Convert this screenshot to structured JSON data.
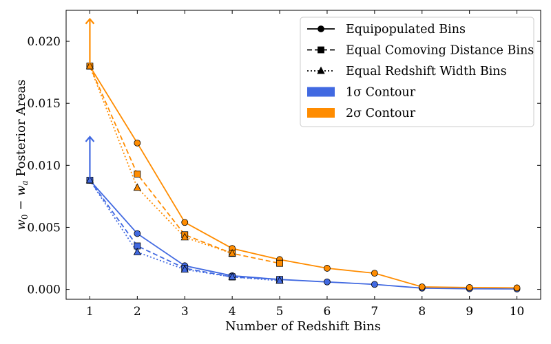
{
  "chart_data": {
    "type": "line",
    "title": "",
    "xlabel": "Number of Redshift Bins",
    "ylabel_prefix": "w",
    "ylabel_sub0": "0",
    "ylabel_minus": " − ",
    "ylabel_var": "w",
    "ylabel_sub1": "a",
    "ylabel_suffix": " Posterior Areas",
    "xlim": [
      0.5,
      10.5
    ],
    "ylim": [
      -0.0008,
      0.0225
    ],
    "xticks": [
      1,
      2,
      3,
      4,
      5,
      6,
      7,
      8,
      9,
      10
    ],
    "xtick_labels": [
      "1",
      "2",
      "3",
      "4",
      "5",
      "6",
      "7",
      "8",
      "9",
      "10"
    ],
    "yticks": [
      0.0,
      0.005,
      0.01,
      0.015,
      0.02
    ],
    "ytick_labels": [
      "0.000",
      "0.005",
      "0.010",
      "0.015",
      "0.020"
    ],
    "colors": {
      "contour1": "#4169e1",
      "contour2": "#ff8c00"
    },
    "series": [
      {
        "binning": "equipopulated",
        "contour": "contour1",
        "marker": "circle",
        "dash": "solid",
        "x": [
          1,
          2,
          3,
          4,
          5,
          6,
          7,
          8,
          9,
          10
        ],
        "y": [
          0.0088,
          0.0045,
          0.0019,
          0.0011,
          0.0008,
          0.0006,
          0.0004,
          0.0001,
          5e-05,
          3e-05
        ]
      },
      {
        "binning": "equal_comoving",
        "contour": "contour1",
        "marker": "square",
        "dash": "dashed",
        "x": [
          1,
          2,
          3,
          4,
          5
        ],
        "y": [
          0.0088,
          0.0035,
          0.0017,
          0.001,
          0.0008
        ]
      },
      {
        "binning": "equal_redshift",
        "contour": "contour1",
        "marker": "triangle",
        "dash": "dotted",
        "x": [
          1,
          2,
          3,
          4,
          5
        ],
        "y": [
          0.0088,
          0.003,
          0.0016,
          0.001,
          0.0007
        ]
      },
      {
        "binning": "equipopulated",
        "contour": "contour2",
        "marker": "circle",
        "dash": "solid",
        "x": [
          1,
          2,
          3,
          4,
          5,
          6,
          7,
          8,
          9,
          10
        ],
        "y": [
          0.018,
          0.0118,
          0.0054,
          0.0033,
          0.0024,
          0.0017,
          0.0013,
          0.0002,
          0.00015,
          0.00012
        ]
      },
      {
        "binning": "equal_comoving",
        "contour": "contour2",
        "marker": "square",
        "dash": "dashed",
        "x": [
          1,
          2,
          3,
          4,
          5
        ],
        "y": [
          0.018,
          0.0093,
          0.0044,
          0.0029,
          0.0021
        ]
      },
      {
        "binning": "equal_redshift",
        "contour": "contour2",
        "marker": "triangle",
        "dash": "dotted",
        "x": [
          1,
          2,
          3,
          4
        ],
        "y": [
          0.018,
          0.0082,
          0.0042,
          0.0029
        ]
      }
    ],
    "arrows": [
      {
        "contour": "contour1",
        "x": 1,
        "y_from": 0.0088,
        "y_to": 0.0123
      },
      {
        "contour": "contour2",
        "x": 1,
        "y_from": 0.018,
        "y_to": 0.0218
      }
    ],
    "legend": {
      "position": "top-right",
      "entries": [
        {
          "label": "Equipopulated Bins",
          "kind": "line",
          "marker": "circle",
          "dash": "solid"
        },
        {
          "label": "Equal Comoving Distance Bins",
          "kind": "line",
          "marker": "square",
          "dash": "dashed"
        },
        {
          "label": "Equal Redshift Width Bins",
          "kind": "line",
          "marker": "triangle",
          "dash": "dotted"
        },
        {
          "label_sym": "1σ",
          "label_rest": " Contour",
          "kind": "patch",
          "color_key": "contour1"
        },
        {
          "label_sym": "2σ",
          "label_rest": " Contour",
          "kind": "patch",
          "color_key": "contour2"
        }
      ]
    }
  }
}
